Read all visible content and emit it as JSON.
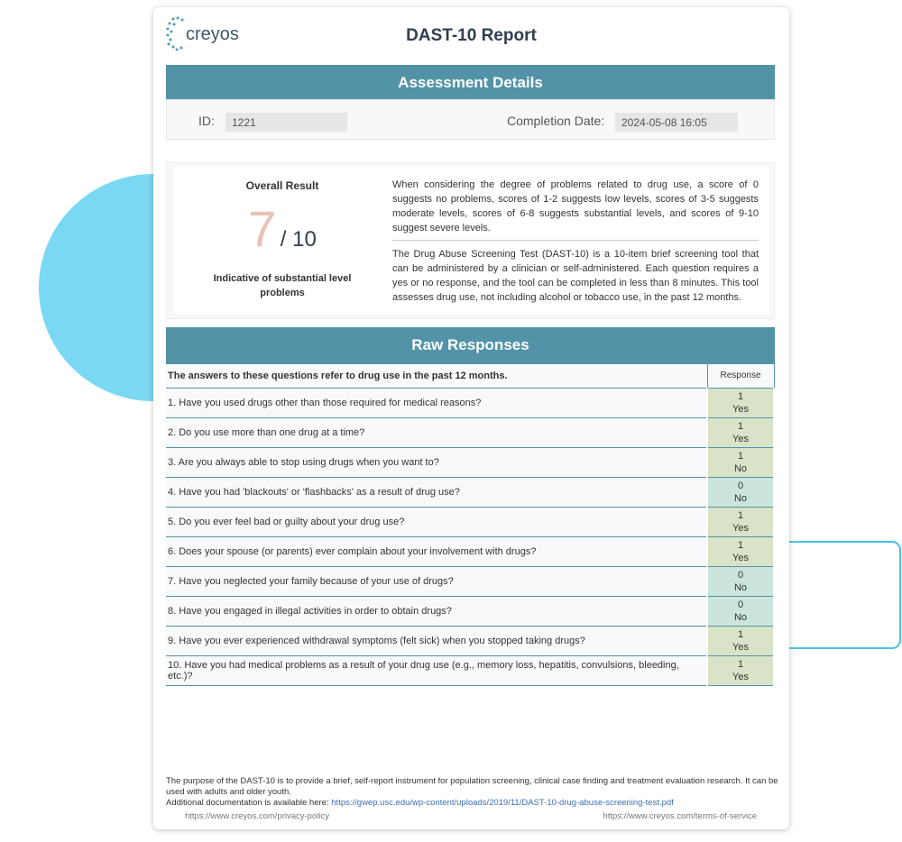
{
  "header": {
    "logo_text": "creyos",
    "title": "DAST-10 Report"
  },
  "assessment": {
    "heading": "Assessment Details",
    "id_label": "ID:",
    "id_value": "1221",
    "date_label": "Completion Date:",
    "date_value": "2024-05-08 16:05"
  },
  "overall": {
    "label": "Overall Result",
    "score": "7",
    "max": "/ 10",
    "interpretation": "Indicative of substantial level problems",
    "desc1": "When considering the degree of problems related to drug use, a score of 0 suggests no problems, scores of 1-2 suggests low levels, scores of 3-5 suggests moderate levels, scores of 6-8 suggests substantial levels, and scores of 9-10 suggest severe levels.",
    "desc2": "The Drug Abuse Screening Test (DAST-10) is a 10-item brief screening tool that can be administered by a clinician or self-administered. Each question requires a yes or no response, and the tool can be completed in less than 8 minutes. This tool assesses drug use, not including alcohol or tobacco use, in the past 12 months."
  },
  "raw": {
    "heading": "Raw Responses",
    "intro": "The answers to these questions refer to drug use in the past 12 months.",
    "response_header": "Response",
    "rows": [
      {
        "q": "1. Have you used drugs other than those required for medical reasons?",
        "score": "1",
        "answer": "Yes"
      },
      {
        "q": "2. Do you use more than one drug at a time?",
        "score": "1",
        "answer": "Yes"
      },
      {
        "q": "3. Are you always able to stop using drugs when you want to?",
        "score": "1",
        "answer": "No"
      },
      {
        "q": "4. Have you had 'blackouts' or 'flashbacks' as a result of drug use?",
        "score": "0",
        "answer": "No"
      },
      {
        "q": "5. Do you ever feel bad or guilty about your drug use?",
        "score": "1",
        "answer": "Yes"
      },
      {
        "q": "6. Does your spouse (or parents) ever complain about your involvement with drugs?",
        "score": "1",
        "answer": "Yes"
      },
      {
        "q": "7. Have you neglected your family because of your use of drugs?",
        "score": "0",
        "answer": "No"
      },
      {
        "q": "8. Have you engaged in illegal activities in order to obtain drugs?",
        "score": "0",
        "answer": "No"
      },
      {
        "q": "9. Have you ever experienced withdrawal symptoms (felt sick) when you stopped taking drugs?",
        "score": "1",
        "answer": "Yes"
      },
      {
        "q": "10. Have you had medical problems as a result of your drug use (e.g., memory loss, hepatitis, convulsions, bleeding, etc.)?",
        "score": "1",
        "answer": "Yes"
      }
    ]
  },
  "footer": {
    "purpose": "The purpose of the DAST-10 is to provide a brief, self-report instrument for population screening, clinical case finding and treatment evaluation research. It can be used with adults and older youth.",
    "doc_label": "Additional documentation is available here: ",
    "doc_link": "https://gwep.usc.edu/wp-content/uploads/2019/11/DAST-10-drug-abuse-screening-test.pdf",
    "privacy": "https://www.creyos.com/privacy-policy",
    "terms": "https://www.creyos.com/terms-of-service"
  },
  "colors": {
    "accent": "#5393a8",
    "score_one": "#d9e3c7",
    "score_zero": "#cbe5da",
    "score_number": "#e8c2b4"
  }
}
